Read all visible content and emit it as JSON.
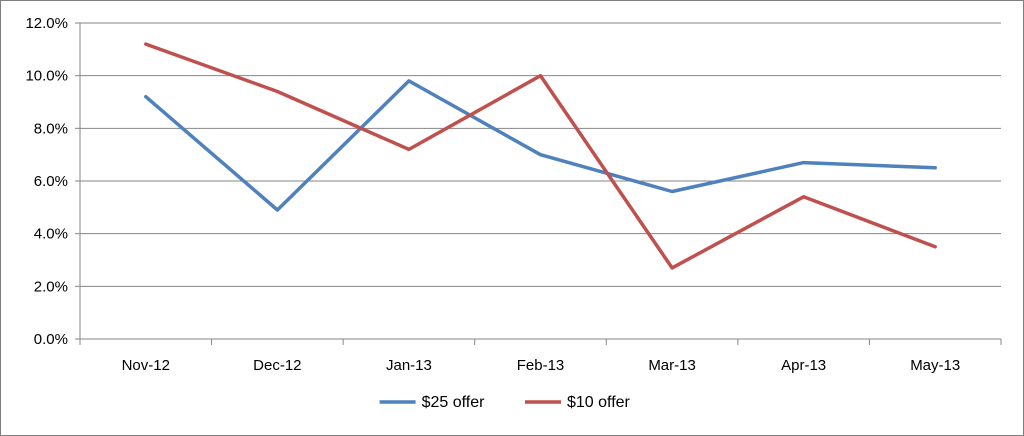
{
  "chart_data": {
    "type": "line",
    "title": "",
    "xlabel": "",
    "ylabel": "",
    "categories": [
      "Nov-12",
      "Dec-12",
      "Jan-13",
      "Feb-13",
      "Mar-13",
      "Apr-13",
      "May-13"
    ],
    "y_ticks": [
      "0.0%",
      "2.0%",
      "4.0%",
      "6.0%",
      "8.0%",
      "10.0%",
      "12.0%"
    ],
    "ylim": [
      0,
      12
    ],
    "grid": true,
    "legend_position": "bottom",
    "series": [
      {
        "name": "$25 offer",
        "color": "#4f81bd",
        "values": [
          9.2,
          4.9,
          9.8,
          7.0,
          5.6,
          6.7,
          6.5
        ]
      },
      {
        "name": "$10 offer",
        "color": "#c0504d",
        "values": [
          11.2,
          9.4,
          7.2,
          10.0,
          2.7,
          5.4,
          3.5
        ]
      }
    ]
  }
}
